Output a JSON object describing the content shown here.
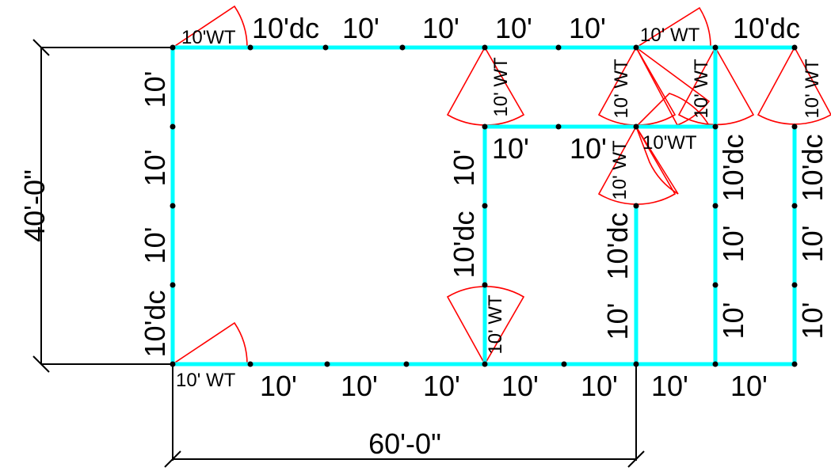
{
  "diagram": {
    "dimensions": {
      "height": "40'-0\"",
      "width": "60'-0\""
    },
    "labels": {
      "ten": "10'",
      "ten_dc": "10'dc",
      "ten_wt": "10' WT",
      "ten_wt_compact": "10'WT"
    },
    "colors": {
      "wall": "#00ffff",
      "coverage": "#ff0000",
      "node": "#000000",
      "dimension": "#000000"
    }
  }
}
